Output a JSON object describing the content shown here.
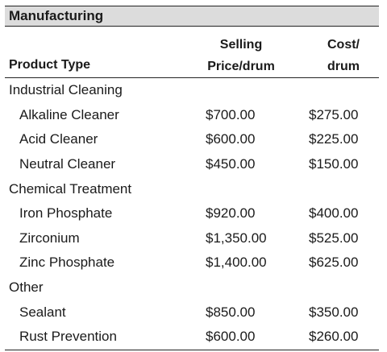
{
  "title": "Manufacturing",
  "columns": {
    "product": "Product Type",
    "price": [
      "Selling",
      "Price/drum"
    ],
    "cost": [
      "Cost/",
      "drum"
    ]
  },
  "groups": [
    {
      "name": "Industrial Cleaning",
      "items": [
        {
          "name": "Alkaline Cleaner",
          "price": "$700.00",
          "cost": "$275.00"
        },
        {
          "name": "Acid Cleaner",
          "price": "$600.00",
          "cost": "$225.00"
        },
        {
          "name": "Neutral Cleaner",
          "price": "$450.00",
          "cost": "$150.00"
        }
      ]
    },
    {
      "name": "Chemical Treatment",
      "items": [
        {
          "name": "Iron Phosphate",
          "price": "$920.00",
          "cost": "$400.00"
        },
        {
          "name": "Zirconium",
          "price": "$1,350.00",
          "cost": "$525.00"
        },
        {
          "name": "Zinc Phosphate",
          "price": "$1,400.00",
          "cost": "$625.00"
        }
      ]
    },
    {
      "name": "Other",
      "items": [
        {
          "name": "Sealant",
          "price": "$850.00",
          "cost": "$350.00"
        },
        {
          "name": "Rust Prevention",
          "price": "$600.00",
          "cost": "$260.00"
        }
      ]
    }
  ]
}
